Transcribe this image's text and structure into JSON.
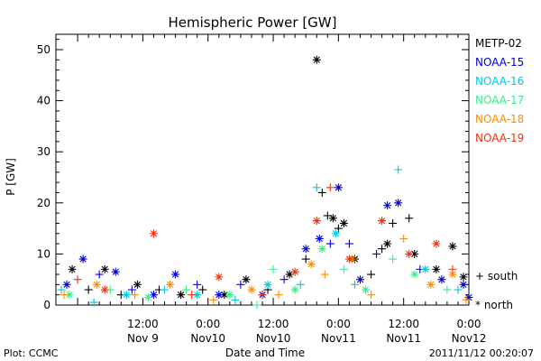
{
  "chart_data": {
    "type": "scatter",
    "title": "Hemispheric Power [GW]",
    "xlabel": "Date and Time",
    "ylabel": "P [GW]",
    "ylim": [
      0,
      53
    ],
    "xlim": [
      "2011-11-08 20:00",
      "2011-11-12 00:00"
    ],
    "y_ticks": [
      0,
      10,
      20,
      30,
      40,
      50
    ],
    "x_ticks": [
      {
        "label": "12:00",
        "sublabel": "Nov 9",
        "x": "2011-11-09 12:00"
      },
      {
        "label": "0:00",
        "sublabel": "Nov10",
        "x": "2011-11-10 00:00"
      },
      {
        "label": "12:00",
        "sublabel": "Nov10",
        "x": "2011-11-10 12:00"
      },
      {
        "label": "0:00",
        "sublabel": "Nov11",
        "x": "2011-11-11 00:00"
      },
      {
        "label": "12:00",
        "sublabel": "Nov11",
        "x": "2011-11-11 12:00"
      },
      {
        "label": "0:00",
        "sublabel": "Nov12",
        "x": "2011-11-12 00:00"
      }
    ],
    "grid": false,
    "marker_legend": {
      "south": "+ south",
      "north": "* north"
    },
    "series": [
      {
        "name": "METP-02",
        "color": "#000000",
        "points": [
          {
            "t": "2011-11-08 23:00",
            "y": 7,
            "m": "*"
          },
          {
            "t": "2011-11-09 02:00",
            "y": 3,
            "m": "+"
          },
          {
            "t": "2011-11-09 05:00",
            "y": 7,
            "m": "*"
          },
          {
            "t": "2011-11-09 08:00",
            "y": 2,
            "m": "+"
          },
          {
            "t": "2011-11-09 11:00",
            "y": 4,
            "m": "*"
          },
          {
            "t": "2011-11-09 15:00",
            "y": 3,
            "m": "+"
          },
          {
            "t": "2011-11-09 19:00",
            "y": 2,
            "m": "*"
          },
          {
            "t": "2011-11-09 23:00",
            "y": 3,
            "m": "+"
          },
          {
            "t": "2011-11-10 03:00",
            "y": 2,
            "m": "*"
          },
          {
            "t": "2011-11-10 07:00",
            "y": 5,
            "m": "*"
          },
          {
            "t": "2011-11-10 11:00",
            "y": 3,
            "m": "+"
          },
          {
            "t": "2011-11-10 15:00",
            "y": 6,
            "m": "*"
          },
          {
            "t": "2011-11-10 18:00",
            "y": 9,
            "m": "+"
          },
          {
            "t": "2011-11-10 20:00",
            "y": 48,
            "m": "*"
          },
          {
            "t": "2011-11-10 21:00",
            "y": 22,
            "m": "+"
          },
          {
            "t": "2011-11-10 22:00",
            "y": 17.5,
            "m": "+"
          },
          {
            "t": "2011-11-10 23:00",
            "y": 17,
            "m": "*"
          },
          {
            "t": "2011-11-11 00:00",
            "y": 15,
            "m": "+"
          },
          {
            "t": "2011-11-11 01:00",
            "y": 16,
            "m": "*"
          },
          {
            "t": "2011-11-11 03:00",
            "y": 9,
            "m": "*"
          },
          {
            "t": "2011-11-11 06:00",
            "y": 6,
            "m": "+"
          },
          {
            "t": "2011-11-11 08:00",
            "y": 11,
            "m": "+"
          },
          {
            "t": "2011-11-11 09:00",
            "y": 12,
            "m": "*"
          },
          {
            "t": "2011-11-11 10:00",
            "y": 16,
            "m": "+"
          },
          {
            "t": "2011-11-11 13:00",
            "y": 17,
            "m": "+"
          },
          {
            "t": "2011-11-11 14:00",
            "y": 10,
            "m": "*"
          },
          {
            "t": "2011-11-11 18:00",
            "y": 7,
            "m": "*"
          },
          {
            "t": "2011-11-11 21:00",
            "y": 11.5,
            "m": "*"
          },
          {
            "t": "2011-11-11 23:00",
            "y": 5.5,
            "m": "*"
          }
        ]
      },
      {
        "name": "NOAA-15",
        "color": "#0000dd",
        "points": [
          {
            "t": "2011-11-08 22:00",
            "y": 4,
            "m": "*"
          },
          {
            "t": "2011-11-09 01:00",
            "y": 9,
            "m": "*"
          },
          {
            "t": "2011-11-09 04:00",
            "y": 6,
            "m": "+"
          },
          {
            "t": "2011-11-09 07:00",
            "y": 6.5,
            "m": "*"
          },
          {
            "t": "2011-11-09 10:00",
            "y": 3,
            "m": "+"
          },
          {
            "t": "2011-11-09 14:00",
            "y": 2,
            "m": "*"
          },
          {
            "t": "2011-11-09 18:00",
            "y": 6,
            "m": "*"
          },
          {
            "t": "2011-11-09 22:00",
            "y": 4,
            "m": "+"
          },
          {
            "t": "2011-11-10 02:00",
            "y": 2,
            "m": "*"
          },
          {
            "t": "2011-11-10 06:00",
            "y": 4,
            "m": "+"
          },
          {
            "t": "2011-11-10 10:00",
            "y": 2,
            "m": "*"
          },
          {
            "t": "2011-11-10 14:00",
            "y": 5,
            "m": "+"
          },
          {
            "t": "2011-11-10 18:00",
            "y": 11,
            "m": "*"
          },
          {
            "t": "2011-11-10 20:30",
            "y": 13,
            "m": "*"
          },
          {
            "t": "2011-11-10 22:30",
            "y": 12,
            "m": "+"
          },
          {
            "t": "2011-11-11 00:00",
            "y": 23,
            "m": "*"
          },
          {
            "t": "2011-11-11 02:00",
            "y": 12,
            "m": "+"
          },
          {
            "t": "2011-11-11 04:00",
            "y": 5,
            "m": "*"
          },
          {
            "t": "2011-11-11 07:00",
            "y": 10,
            "m": "+"
          },
          {
            "t": "2011-11-11 09:00",
            "y": 19.5,
            "m": "*"
          },
          {
            "t": "2011-11-11 11:00",
            "y": 20,
            "m": "*"
          },
          {
            "t": "2011-11-11 15:00",
            "y": 7,
            "m": "+"
          },
          {
            "t": "2011-11-11 19:00",
            "y": 5,
            "m": "*"
          },
          {
            "t": "2011-11-11 23:00",
            "y": 4,
            "m": "*"
          },
          {
            "t": "2011-11-12 00:00",
            "y": 1.5,
            "m": "*"
          }
        ]
      },
      {
        "name": "NOAA-16",
        "color": "#00c8e0",
        "points": [
          {
            "t": "2011-11-08 21:00",
            "y": 3,
            "m": "+"
          },
          {
            "t": "2011-11-09 03:00",
            "y": 0.5,
            "m": "+"
          },
          {
            "t": "2011-11-09 09:00",
            "y": 2,
            "m": "*"
          },
          {
            "t": "2011-11-09 16:00",
            "y": 3,
            "m": "+"
          },
          {
            "t": "2011-11-09 22:00",
            "y": 2,
            "m": "*"
          },
          {
            "t": "2011-11-10 05:00",
            "y": 1,
            "m": "+"
          },
          {
            "t": "2011-11-10 11:00",
            "y": 4,
            "m": "*"
          },
          {
            "t": "2011-11-10 17:00",
            "y": 4,
            "m": "+"
          },
          {
            "t": "2011-11-10 20:00",
            "y": 23,
            "m": "+"
          },
          {
            "t": "2011-11-10 23:30",
            "y": 14,
            "m": "*"
          },
          {
            "t": "2011-11-11 03:00",
            "y": 4,
            "m": "+"
          },
          {
            "t": "2011-11-11 11:00",
            "y": 26.5,
            "m": "+"
          },
          {
            "t": "2011-11-11 16:00",
            "y": 7,
            "m": "*"
          },
          {
            "t": "2011-11-11 22:00",
            "y": 3,
            "m": "+"
          }
        ]
      },
      {
        "name": "NOAA-17",
        "color": "#33ee88",
        "points": [
          {
            "t": "2011-11-08 22:30",
            "y": 2,
            "m": "*"
          },
          {
            "t": "2011-11-09 06:00",
            "y": 3,
            "m": "+"
          },
          {
            "t": "2011-11-09 13:00",
            "y": 1.5,
            "m": "*"
          },
          {
            "t": "2011-11-09 20:00",
            "y": 3,
            "m": "+"
          },
          {
            "t": "2011-11-10 04:00",
            "y": 2,
            "m": "*"
          },
          {
            "t": "2011-11-10 09:00",
            "y": 0,
            "m": "+"
          },
          {
            "t": "2011-11-10 12:00",
            "y": 7,
            "m": "+"
          },
          {
            "t": "2011-11-10 16:00",
            "y": 3,
            "m": "*"
          },
          {
            "t": "2011-11-10 21:00",
            "y": 11,
            "m": "*"
          },
          {
            "t": "2011-11-11 01:00",
            "y": 7,
            "m": "+"
          },
          {
            "t": "2011-11-11 05:00",
            "y": 3,
            "m": "*"
          },
          {
            "t": "2011-11-11 10:00",
            "y": 9,
            "m": "+"
          },
          {
            "t": "2011-11-11 14:00",
            "y": 6,
            "m": "*"
          },
          {
            "t": "2011-11-11 20:00",
            "y": 3,
            "m": "+"
          }
        ]
      },
      {
        "name": "NOAA-18",
        "color": "#ff8c00",
        "points": [
          {
            "t": "2011-11-08 21:30",
            "y": 2,
            "m": "+"
          },
          {
            "t": "2011-11-09 03:30",
            "y": 4,
            "m": "*"
          },
          {
            "t": "2011-11-09 10:30",
            "y": 2,
            "m": "+"
          },
          {
            "t": "2011-11-09 17:00",
            "y": 4,
            "m": "*"
          },
          {
            "t": "2011-11-10 01:00",
            "y": 1,
            "m": "+"
          },
          {
            "t": "2011-11-10 08:00",
            "y": 3,
            "m": "*"
          },
          {
            "t": "2011-11-10 13:00",
            "y": 2,
            "m": "+"
          },
          {
            "t": "2011-11-10 19:00",
            "y": 8,
            "m": "*"
          },
          {
            "t": "2011-11-10 21:30",
            "y": 6,
            "m": "+"
          },
          {
            "t": "2011-11-11 02:30",
            "y": 9,
            "m": "*"
          },
          {
            "t": "2011-11-11 06:00",
            "y": 2,
            "m": "+"
          },
          {
            "t": "2011-11-11 12:00",
            "y": 13,
            "m": "+"
          },
          {
            "t": "2011-11-11 17:00",
            "y": 4,
            "m": "*"
          },
          {
            "t": "2011-11-11 21:00",
            "y": 6,
            "m": "*"
          },
          {
            "t": "2011-11-11 23:30",
            "y": 1,
            "m": "+"
          }
        ]
      },
      {
        "name": "NOAA-19",
        "color": "#ee3311",
        "points": [
          {
            "t": "2011-11-09 00:00",
            "y": 5,
            "m": "+"
          },
          {
            "t": "2011-11-09 05:00",
            "y": 3,
            "m": "*"
          },
          {
            "t": "2011-11-09 14:00",
            "y": 14,
            "m": "*"
          },
          {
            "t": "2011-11-09 21:00",
            "y": 2,
            "m": "+"
          },
          {
            "t": "2011-11-10 02:00",
            "y": 5.5,
            "m": "*"
          },
          {
            "t": "2011-11-10 10:00",
            "y": 2,
            "m": "+"
          },
          {
            "t": "2011-11-10 16:00",
            "y": 6.5,
            "m": "*"
          },
          {
            "t": "2011-11-10 20:00",
            "y": 16.5,
            "m": "*"
          },
          {
            "t": "2011-11-10 22:30",
            "y": 23,
            "m": "+"
          },
          {
            "t": "2011-11-11 02:00",
            "y": 9,
            "m": "*"
          },
          {
            "t": "2011-11-11 08:00",
            "y": 16.5,
            "m": "*"
          },
          {
            "t": "2011-11-11 13:00",
            "y": 10,
            "m": "*"
          },
          {
            "t": "2011-11-11 18:00",
            "y": 12,
            "m": "*"
          },
          {
            "t": "2011-11-11 21:00",
            "y": 7,
            "m": "+"
          }
        ]
      }
    ]
  },
  "footer": {
    "plot_credit": "Plot: CCMC",
    "timestamp": "2011/11/12 00:20:07"
  }
}
